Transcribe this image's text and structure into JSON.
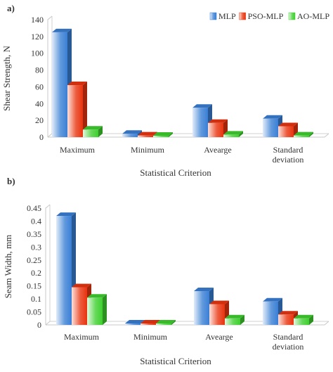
{
  "chart_data": [
    {
      "type": "bar",
      "panel_label": "a)",
      "categories": [
        "Maximum",
        "Minimum",
        "Avearge",
        "Standard deviation"
      ],
      "category_lines": [
        [
          "Maximum"
        ],
        [
          "Minimum"
        ],
        [
          "Avearge"
        ],
        [
          "Standard",
          "deviation"
        ]
      ],
      "series": [
        {
          "name": "MLP",
          "values": [
            125,
            4,
            35,
            22
          ],
          "color": "#3a7fd5"
        },
        {
          "name": "PSO-MLP",
          "values": [
            62,
            2,
            17,
            13
          ],
          "color": "#e8340f"
        },
        {
          "name": "AO-MLP",
          "values": [
            9,
            1,
            3,
            2
          ],
          "color": "#3fcf2f"
        }
      ],
      "xlabel": "Statistical Criterion",
      "ylabel": "Shear Strength, N",
      "yticks": [
        "0",
        "20",
        "40",
        "60",
        "80",
        "100",
        "120",
        "140"
      ],
      "ylim": [
        0,
        140
      ],
      "legend": "top-right",
      "grid": false
    },
    {
      "type": "bar",
      "panel_label": "b)",
      "categories": [
        "Maximum",
        "Minimum",
        "Avearge",
        "Standard deviation"
      ],
      "category_lines": [
        [
          "Maximum"
        ],
        [
          "Minimum"
        ],
        [
          "Avearge"
        ],
        [
          "Standard",
          "deviation"
        ]
      ],
      "series": [
        {
          "name": "MLP",
          "values": [
            0.42,
            0.0,
            0.13,
            0.09
          ],
          "color": "#3a7fd5"
        },
        {
          "name": "PSO-MLP",
          "values": [
            0.145,
            0.0,
            0.08,
            0.04
          ],
          "color": "#e8340f"
        },
        {
          "name": "AO-MLP",
          "values": [
            0.105,
            0.0,
            0.025,
            0.025
          ],
          "color": "#3fcf2f"
        }
      ],
      "xlabel": "Statistical Criterion",
      "ylabel": "Seam Width, mm",
      "yticks": [
        "0",
        "0.05",
        "0.1",
        "0.15",
        "0.2",
        "0.25",
        "0.3",
        "0.35",
        "0.4",
        "0.45"
      ],
      "ylim": [
        0,
        0.45
      ],
      "grid": false
    }
  ]
}
